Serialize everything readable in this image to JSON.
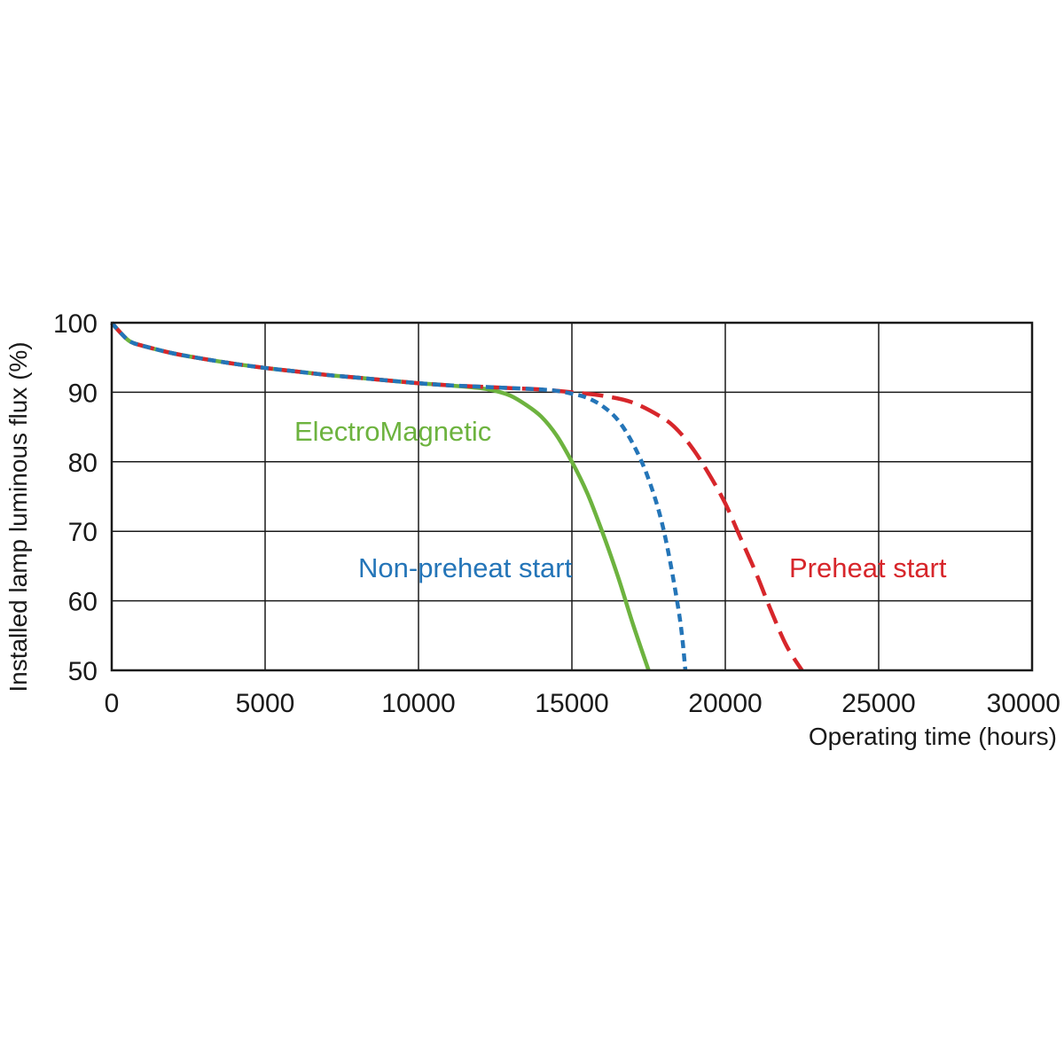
{
  "chart_data": {
    "type": "line",
    "title": "",
    "xlabel": "Operating time (hours)",
    "ylabel": "Installed lamp luminous flux  (%)",
    "xlim": [
      0,
      30000
    ],
    "ylim": [
      50,
      100
    ],
    "x_ticks": [
      0,
      5000,
      10000,
      15000,
      20000,
      25000,
      30000
    ],
    "y_ticks": [
      50,
      60,
      70,
      80,
      90,
      100
    ],
    "grid": true,
    "legend": "inline labels",
    "series": [
      {
        "name": "ElectroMagnetic",
        "color": "#6db33f",
        "line_style": "solid",
        "x": [
          0,
          300,
          600,
          1000,
          2000,
          3000,
          4000,
          5000,
          6000,
          7000,
          8000,
          9000,
          10000,
          11000,
          12000,
          12500,
          13000,
          13500,
          14000,
          14500,
          15000,
          15500,
          16000,
          16500,
          17000,
          17500
        ],
        "y": [
          100,
          98.5,
          97.3,
          96.7,
          95.6,
          94.8,
          94.1,
          93.5,
          93,
          92.5,
          92.1,
          91.7,
          91.3,
          91,
          90.6,
          90.2,
          89.5,
          88.2,
          86.5,
          83.8,
          80,
          75.5,
          69.8,
          63.5,
          56.5,
          50
        ]
      },
      {
        "name": "Non-preheat start",
        "color": "#2475b8",
        "line_style": "dashed",
        "x": [
          0,
          300,
          600,
          1000,
          2000,
          3000,
          4000,
          5000,
          6000,
          7000,
          8000,
          9000,
          10000,
          11000,
          12000,
          13000,
          14000,
          14500,
          15000,
          15500,
          16000,
          16500,
          17000,
          17500,
          18000,
          18500,
          18700
        ],
        "y": [
          100,
          98.5,
          97.3,
          96.7,
          95.6,
          94.8,
          94.1,
          93.5,
          93,
          92.5,
          92.1,
          91.7,
          91.3,
          91,
          90.8,
          90.6,
          90.4,
          90.2,
          89.8,
          89.2,
          88,
          86,
          82.5,
          77.5,
          70,
          58,
          50
        ]
      },
      {
        "name": "Preheat start",
        "color": "#d7262b",
        "line_style": "long-dashed",
        "x": [
          0,
          300,
          600,
          1000,
          2000,
          3000,
          4000,
          5000,
          6000,
          7000,
          8000,
          9000,
          10000,
          11000,
          12000,
          13000,
          14000,
          15000,
          16000,
          17000,
          18000,
          18500,
          19000,
          19500,
          20000,
          20500,
          21000,
          21500,
          22000,
          22500
        ],
        "y": [
          100,
          98.5,
          97.3,
          96.7,
          95.6,
          94.8,
          94.1,
          93.5,
          93,
          92.5,
          92.1,
          91.7,
          91.3,
          91,
          90.8,
          90.6,
          90.4,
          90,
          89.5,
          88.5,
          86.2,
          84.3,
          81.5,
          78,
          74,
          69,
          64,
          58.5,
          53.5,
          50
        ]
      }
    ]
  }
}
